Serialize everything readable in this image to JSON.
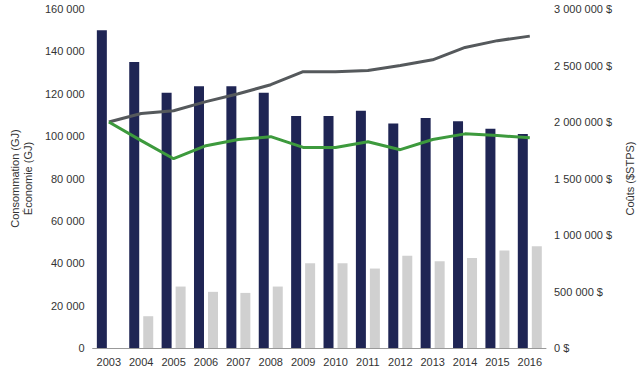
{
  "chart_data": {
    "type": "bar",
    "ylabel": "Consommation (GJ)\nÉconomie (GJ)",
    "y2label": "Coûts ($STPS)",
    "categories": [
      "2003",
      "2004",
      "2005",
      "2006",
      "2007",
      "2008",
      "2009",
      "2010",
      "2011",
      "2012",
      "2013",
      "2014",
      "2015",
      "2016"
    ],
    "series": [
      {
        "type": "bar",
        "color": "#1f2554",
        "values": [
          150000,
          135000,
          120500,
          123500,
          123500,
          120500,
          109500,
          109500,
          112000,
          106000,
          108500,
          107000,
          103500,
          101000
        ]
      },
      {
        "type": "bar",
        "color": "#d0d0d0",
        "values": [
          null,
          15000,
          29000,
          26500,
          26000,
          29000,
          40000,
          40000,
          37500,
          43500,
          41000,
          42500,
          46000,
          48000
        ]
      },
      {
        "type": "line",
        "axis": "y2",
        "color": "#55595c",
        "marker": "none",
        "line_style": "solid",
        "values": [
          2000000,
          2075000,
          2100000,
          2180000,
          2250000,
          2330000,
          2445000,
          2445000,
          2455000,
          2500000,
          2550000,
          2660000,
          2720000,
          2760000
        ]
      },
      {
        "type": "line",
        "axis": "y2",
        "color": "#3d9a3d",
        "marker": "none",
        "line_style": "solid",
        "values": [
          2000000,
          1835000,
          1675000,
          1790000,
          1845000,
          1870000,
          1775000,
          1775000,
          1825000,
          1755000,
          1845000,
          1895000,
          1880000,
          1860000
        ]
      }
    ],
    "ylim": [
      0,
      160000
    ],
    "yticks": [
      0,
      {
        "value": 20000,
        "label": "20 000"
      },
      {
        "value": 40000,
        "label": "40 000"
      },
      {
        "value": 60000,
        "label": "60 000"
      },
      {
        "value": 80000,
        "label": "80 000"
      },
      {
        "value": 100000,
        "label": "100 000"
      },
      {
        "value": 120000,
        "label": "120 000"
      },
      {
        "value": 140000,
        "label": "140 000"
      },
      {
        "value": 160000,
        "label": "160 000"
      }
    ],
    "y2lim": [
      0,
      3000000
    ],
    "y2ticks": [
      {
        "value": 0,
        "label": "0 $"
      },
      {
        "value": 500000,
        "label": "500 000 $"
      },
      {
        "value": 1000000,
        "label": "1 000 000 $"
      },
      {
        "value": 1500000,
        "label": "1 500 000 $"
      },
      {
        "value": 2000000,
        "label": "2 000 000 $"
      },
      {
        "value": 2500000,
        "label": "2 500 000 $"
      },
      {
        "value": 3000000,
        "label": "3 000 000 $"
      }
    ],
    "grid": false
  }
}
